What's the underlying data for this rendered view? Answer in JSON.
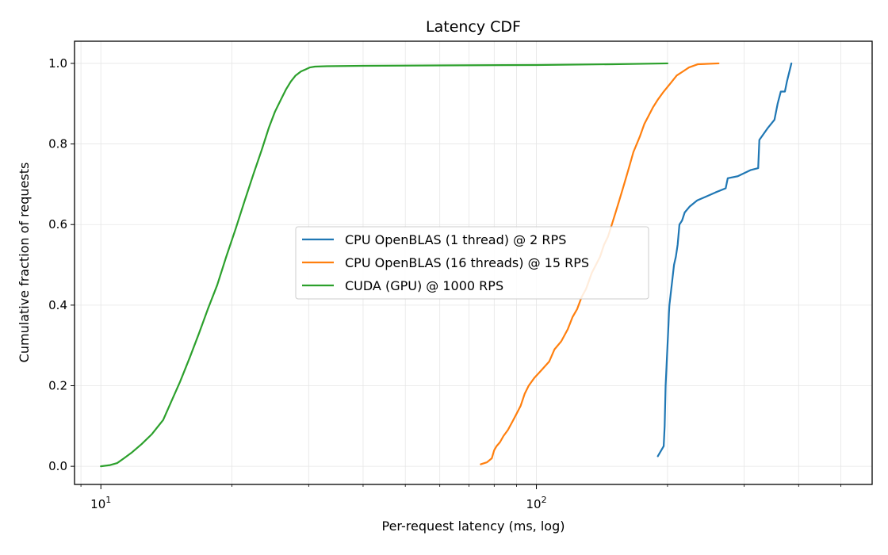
{
  "chart_data": {
    "type": "line",
    "title": "Latency CDF",
    "xlabel": "Per-request latency (ms, log)",
    "ylabel": "Cumulative fraction of requests",
    "xscale": "log",
    "xlim": [
      8.7,
      590
    ],
    "ylim": [
      -0.045,
      1.055
    ],
    "yticks": [
      0.0,
      0.2,
      0.4,
      0.6,
      0.8,
      1.0
    ],
    "ytick_labels": [
      "0.0",
      "0.2",
      "0.4",
      "0.6",
      "0.8",
      "1.0"
    ],
    "xticks": [
      10,
      100
    ],
    "xtick_base": "10",
    "xtick_exponents": [
      "1",
      "2"
    ],
    "grid": true,
    "legend_position": "center",
    "series": [
      {
        "name": "CPU OpenBLAS (1 thread) @ 2 RPS",
        "color": "#1f77b4",
        "x": [
          190,
          196,
          197,
          198,
          199,
          200,
          201,
          201.5,
          202,
          203,
          204,
          205,
          207,
          209,
          211,
          213,
          216,
          219,
          225,
          234,
          246,
          258,
          272,
          275,
          290,
          310,
          323,
          325,
          340,
          352,
          358,
          364,
          372,
          376,
          385
        ],
        "y": [
          0.025,
          0.05,
          0.1,
          0.2,
          0.25,
          0.3,
          0.35,
          0.38,
          0.4,
          0.42,
          0.44,
          0.46,
          0.5,
          0.52,
          0.55,
          0.6,
          0.61,
          0.63,
          0.645,
          0.66,
          0.67,
          0.68,
          0.69,
          0.715,
          0.72,
          0.735,
          0.74,
          0.81,
          0.84,
          0.86,
          0.9,
          0.93,
          0.93,
          0.955,
          1.0
        ]
      },
      {
        "name": "CPU OpenBLAS (16 threads) @ 15 RPS",
        "color": "#ff7f0e",
        "x": [
          74.5,
          77,
          79,
          80,
          81,
          82.5,
          84,
          86,
          88,
          90,
          92,
          94,
          96,
          99,
          101,
          103,
          107,
          110,
          114,
          118,
          121,
          124,
          127,
          130,
          132,
          134,
          137,
          140,
          143,
          146,
          149,
          152,
          155,
          158,
          161,
          164,
          167,
          170,
          173,
          177,
          181,
          185,
          190,
          196,
          203,
          210,
          217,
          224,
          235,
          262
        ],
        "y": [
          0.005,
          0.01,
          0.02,
          0.04,
          0.05,
          0.06,
          0.075,
          0.09,
          0.11,
          0.13,
          0.15,
          0.18,
          0.2,
          0.22,
          0.23,
          0.24,
          0.26,
          0.29,
          0.31,
          0.34,
          0.37,
          0.39,
          0.42,
          0.44,
          0.46,
          0.48,
          0.5,
          0.52,
          0.55,
          0.57,
          0.6,
          0.63,
          0.66,
          0.69,
          0.72,
          0.75,
          0.78,
          0.8,
          0.82,
          0.85,
          0.87,
          0.89,
          0.91,
          0.93,
          0.95,
          0.97,
          0.98,
          0.99,
          0.998,
          1.0
        ]
      },
      {
        "name": "CUDA (GPU) @ 1000 RPS",
        "color": "#2ca02c",
        "x": [
          10.0,
          10.5,
          10.9,
          11.3,
          11.8,
          12.4,
          13.1,
          13.9,
          14.5,
          15.2,
          16.0,
          16.8,
          17.6,
          18.5,
          19.4,
          20.4,
          21.4,
          22.4,
          23.4,
          24.3,
          25.1,
          25.9,
          26.6,
          27.3,
          28.0,
          28.8,
          29.5,
          30.2,
          31.0,
          33.0,
          40.0,
          60.0,
          100.0,
          150.0,
          200.0
        ],
        "y": [
          0.0,
          0.003,
          0.008,
          0.02,
          0.035,
          0.055,
          0.08,
          0.115,
          0.16,
          0.21,
          0.27,
          0.33,
          0.39,
          0.45,
          0.52,
          0.59,
          0.66,
          0.725,
          0.785,
          0.84,
          0.88,
          0.91,
          0.935,
          0.955,
          0.97,
          0.98,
          0.985,
          0.99,
          0.992,
          0.993,
          0.994,
          0.995,
          0.996,
          0.998,
          1.0
        ]
      }
    ]
  }
}
